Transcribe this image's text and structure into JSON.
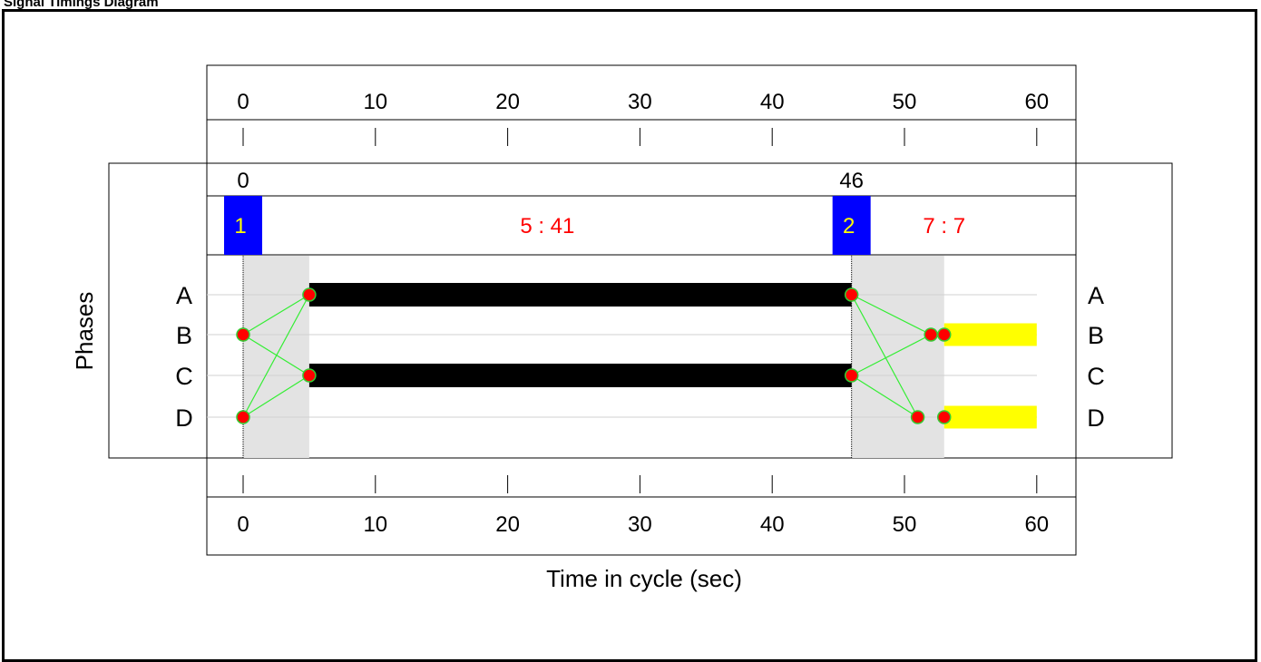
{
  "title": "Signal Timings Diagram",
  "chart_data": {
    "type": "signal-timing",
    "x_ticks": [
      0,
      10,
      20,
      30,
      40,
      50,
      60
    ],
    "xlabel": "Time in cycle (sec)",
    "ylabel": "Phases",
    "phases": [
      "A",
      "B",
      "C",
      "D"
    ],
    "stages": [
      {
        "number": "1",
        "start": 0,
        "start_label": "0",
        "timing": "5 : 41",
        "intergreen_end": 5
      },
      {
        "number": "2",
        "start": 46,
        "start_label": "46",
        "timing": "7 : 7",
        "intergreen_end": 53
      }
    ],
    "green_bars": [
      {
        "phase": "A",
        "start": 5,
        "end": 46,
        "color": "#000000"
      },
      {
        "phase": "C",
        "start": 5,
        "end": 46,
        "color": "#000000"
      },
      {
        "phase": "B",
        "start": 53,
        "end": 60,
        "color": "#ffff00"
      },
      {
        "phase": "D",
        "start": 53,
        "end": 60,
        "color": "#ffff00"
      }
    ],
    "nodes": [
      {
        "phase": "B",
        "t": 0
      },
      {
        "phase": "D",
        "t": 0
      },
      {
        "phase": "A",
        "t": 5
      },
      {
        "phase": "C",
        "t": 5
      },
      {
        "phase": "A",
        "t": 46
      },
      {
        "phase": "C",
        "t": 46
      },
      {
        "phase": "B",
        "t": 52
      },
      {
        "phase": "B",
        "t": 53
      },
      {
        "phase": "D",
        "t": 51
      },
      {
        "phase": "D",
        "t": 53
      }
    ],
    "links": [
      [
        {
          "phase": "B",
          "t": 0
        },
        {
          "phase": "A",
          "t": 5
        }
      ],
      [
        {
          "phase": "B",
          "t": 0
        },
        {
          "phase": "C",
          "t": 5
        }
      ],
      [
        {
          "phase": "D",
          "t": 0
        },
        {
          "phase": "A",
          "t": 5
        }
      ],
      [
        {
          "phase": "D",
          "t": 0
        },
        {
          "phase": "C",
          "t": 5
        }
      ],
      [
        {
          "phase": "A",
          "t": 46
        },
        {
          "phase": "B",
          "t": 52
        }
      ],
      [
        {
          "phase": "A",
          "t": 46
        },
        {
          "phase": "D",
          "t": 51
        }
      ],
      [
        {
          "phase": "C",
          "t": 46
        },
        {
          "phase": "B",
          "t": 52
        }
      ],
      [
        {
          "phase": "C",
          "t": 46
        },
        {
          "phase": "D",
          "t": 51
        }
      ]
    ],
    "colors": {
      "stage_box": "#0000ff",
      "stage_number": "#ffff00",
      "timing_text": "#ff0000",
      "node_fill": "#ff0000",
      "node_stroke": "#33cc33",
      "link": "#33ee33",
      "intergreen_shade": "#e3e3e3"
    }
  }
}
